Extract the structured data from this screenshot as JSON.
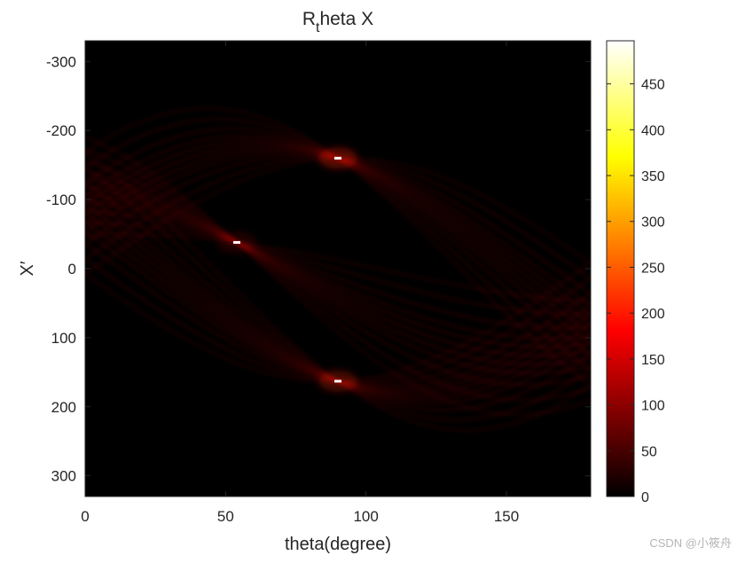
{
  "chart_data": {
    "type": "heatmap",
    "title_main": "R",
    "title_sub": "t",
    "title_rest": "heta X",
    "xlabel": "theta(degree)",
    "ylabel": "X′",
    "xlim": [
      0,
      180
    ],
    "ylim": [
      -330,
      330
    ],
    "y_reversed": true,
    "x_ticks": [
      0,
      50,
      100,
      150
    ],
    "x_tick_labels": [
      "0",
      "50",
      "100",
      "150"
    ],
    "y_ticks": [
      -300,
      -200,
      -100,
      0,
      100,
      200,
      300
    ],
    "y_tick_labels": [
      "-300",
      "-200",
      "-100",
      "0",
      "100",
      "200",
      "300"
    ],
    "colormap": "hot",
    "clim": [
      0,
      497
    ],
    "colorbar_ticks": [
      0,
      50,
      100,
      150,
      200,
      250,
      300,
      350,
      400,
      450
    ],
    "colorbar_tick_labels": [
      "0",
      "50",
      "100",
      "150",
      "200",
      "250",
      "300",
      "350",
      "400",
      "450"
    ],
    "peaks": [
      {
        "theta": 90,
        "x": -160,
        "value": 497
      },
      {
        "theta": 54,
        "x": -38,
        "value": 180
      },
      {
        "theta": 90,
        "x": 163,
        "value": 400
      }
    ],
    "sinusoids": [
      {
        "center_theta": 90,
        "center_x": -160
      },
      {
        "center_theta": 54,
        "center_x": -38
      },
      {
        "center_theta": 90,
        "center_x": 163
      }
    ]
  },
  "watermark": "CSDN @小筱舟"
}
